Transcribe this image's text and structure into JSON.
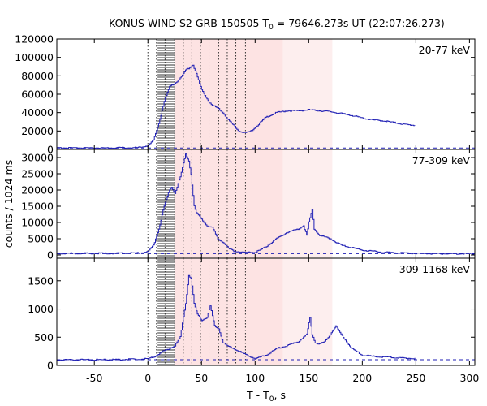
{
  "chart_data": {
    "type": "line",
    "title_prefix": "KONUS-WIND S2 GRB 150505 T",
    "title_sub": "0",
    "title_suffix": " = 79646.273s UT (22:07:26.273)",
    "xlabel_prefix": "T - T",
    "xlabel_sub": "0",
    "xlabel_suffix": ", s",
    "ylabel": "counts / 1024 ms",
    "xlim": [
      -85,
      305
    ],
    "x_ticks": [
      -50,
      0,
      50,
      100,
      150,
      200,
      250,
      300
    ],
    "x_tick_labels": [
      "-50",
      "0",
      "50",
      "100",
      "150",
      "200",
      "250",
      "300"
    ],
    "shaded_regions": [
      {
        "from": 25,
        "to": 126,
        "color": "#fde3e3"
      },
      {
        "from": 126,
        "to": 172,
        "color": "#fdeeee"
      }
    ],
    "dotted_lines_x": [
      0,
      8,
      16,
      25,
      33,
      41,
      49,
      57,
      66,
      74,
      82,
      91
    ],
    "hatched_interval": [
      9,
      25
    ],
    "line_color": "#1f1fb4",
    "panels": [
      {
        "label": "20-77 keV",
        "ylim": [
          0,
          120000
        ],
        "y_ticks": [
          0,
          20000,
          40000,
          60000,
          80000,
          100000,
          120000
        ],
        "y_tick_labels": [
          "0",
          "20000",
          "40000",
          "60000",
          "80000",
          "100000",
          "120000"
        ],
        "background": 1500,
        "x": [
          -85,
          -40,
          -10,
          0,
          5,
          10,
          15,
          20,
          25,
          30,
          35,
          38,
          42,
          45,
          50,
          55,
          60,
          65,
          70,
          75,
          80,
          85,
          90,
          95,
          100,
          110,
          120,
          130,
          140,
          150,
          160,
          170,
          180,
          190,
          200,
          210,
          220,
          230,
          240,
          250
        ],
        "y": [
          1500,
          1500,
          2000,
          4000,
          10000,
          28000,
          52000,
          68000,
          72000,
          77000,
          86000,
          88000,
          92000,
          82000,
          65000,
          55000,
          48000,
          45000,
          40000,
          32000,
          26000,
          20000,
          18000,
          19000,
          24000,
          35000,
          40000,
          42000,
          42000,
          43000,
          42000,
          41000,
          39000,
          37000,
          34000,
          32000,
          31000,
          29000,
          27000,
          26000
        ]
      },
      {
        "label": "77-309 keV",
        "ylim": [
          -1000,
          32500
        ],
        "y_ticks": [
          0,
          5000,
          10000,
          15000,
          20000,
          25000,
          30000
        ],
        "y_tick_labels": [
          "0",
          "5000",
          "10000",
          "15000",
          "20000",
          "25000",
          "30000"
        ],
        "background": 400,
        "x": [
          -85,
          -40,
          -10,
          0,
          5,
          10,
          15,
          20,
          22,
          25,
          30,
          35,
          38,
          40,
          43,
          45,
          50,
          55,
          60,
          65,
          70,
          75,
          80,
          90,
          100,
          110,
          120,
          130,
          140,
          145,
          148,
          150,
          153,
          155,
          160,
          170,
          180,
          200,
          220,
          250,
          270,
          300,
          305
        ],
        "y": [
          500,
          500,
          600,
          1000,
          3000,
          8000,
          15000,
          20000,
          21000,
          19000,
          24000,
          31000,
          29000,
          25000,
          15000,
          13000,
          11000,
          9000,
          8500,
          5000,
          4000,
          2000,
          1200,
          800,
          800,
          2500,
          5000,
          7000,
          8000,
          9000,
          6000,
          10000,
          14000,
          8000,
          6000,
          5000,
          3000,
          1500,
          800,
          500,
          400,
          400,
          400
        ]
      },
      {
        "label": "309-1168 keV",
        "ylim": [
          0,
          1900
        ],
        "y_ticks": [
          0,
          500,
          1000,
          1500
        ],
        "y_tick_labels": [
          "0",
          "500",
          "1000",
          "1500"
        ],
        "background": 100,
        "x": [
          -85,
          -40,
          -10,
          0,
          5,
          10,
          15,
          20,
          25,
          30,
          35,
          38,
          40,
          43,
          46,
          50,
          55,
          58,
          62,
          66,
          70,
          75,
          80,
          90,
          100,
          110,
          120,
          130,
          140,
          148,
          151,
          153,
          156,
          160,
          165,
          170,
          175,
          180,
          190,
          200,
          210,
          220,
          230,
          240,
          250
        ],
        "y": [
          100,
          100,
          110,
          120,
          150,
          200,
          260,
          300,
          350,
          500,
          1100,
          1600,
          1550,
          1100,
          900,
          800,
          850,
          1050,
          700,
          650,
          400,
          330,
          300,
          200,
          120,
          180,
          300,
          350,
          420,
          550,
          850,
          550,
          400,
          380,
          420,
          550,
          700,
          550,
          300,
          180,
          160,
          150,
          140,
          130,
          120
        ]
      }
    ]
  }
}
